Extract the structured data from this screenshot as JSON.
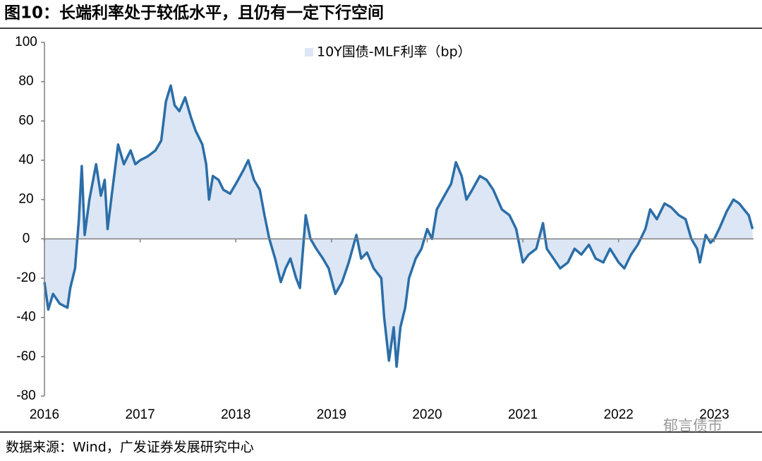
{
  "chart_data": {
    "type": "area",
    "title": "图10：长端利率处于较低水平，且仍有一定下行空间",
    "source": "数据来源：Wind，广发证券发展研究中心",
    "watermark": "郁言债市",
    "x": [
      2016.0,
      2016.04,
      2016.09,
      2016.16,
      2016.24,
      2016.27,
      2016.32,
      2016.36,
      2016.39,
      2016.42,
      2016.47,
      2016.54,
      2016.59,
      2016.63,
      2016.66,
      2016.71,
      2016.77,
      2016.83,
      2016.9,
      2016.95,
      2017.0,
      2017.08,
      2017.16,
      2017.22,
      2017.27,
      2017.32,
      2017.36,
      2017.41,
      2017.47,
      2017.53,
      2017.58,
      2017.65,
      2017.69,
      2017.72,
      2017.76,
      2017.82,
      2017.87,
      2017.94,
      2018.0,
      2018.08,
      2018.13,
      2018.19,
      2018.25,
      2018.3,
      2018.35,
      2018.41,
      2018.47,
      2018.52,
      2018.57,
      2018.63,
      2018.67,
      2018.73,
      2018.78,
      2018.84,
      2018.91,
      2018.97,
      2019.04,
      2019.11,
      2019.18,
      2019.26,
      2019.31,
      2019.37,
      2019.44,
      2019.52,
      2019.55,
      2019.6,
      2019.65,
      2019.68,
      2019.72,
      2019.77,
      2019.81,
      2019.88,
      2019.94,
      2020.0,
      2020.05,
      2020.1,
      2020.18,
      2020.25,
      2020.3,
      2020.36,
      2020.41,
      2020.47,
      2020.55,
      2020.62,
      2020.69,
      2020.78,
      2020.86,
      2020.93,
      2020.97,
      2021.0,
      2021.06,
      2021.14,
      2021.21,
      2021.25,
      2021.32,
      2021.39,
      2021.47,
      2021.54,
      2021.61,
      2021.69,
      2021.76,
      2021.84,
      2021.91,
      2022.0,
      2022.06,
      2022.13,
      2022.2,
      2022.28,
      2022.33,
      2022.4,
      2022.48,
      2022.55,
      2022.63,
      2022.7,
      2022.76,
      2022.82,
      2022.85,
      2022.91,
      2022.96,
      2023.0,
      2023.05,
      2023.13,
      2023.2,
      2023.26,
      2023.31,
      2023.36,
      2023.4
    ],
    "series": [
      {
        "name": "10Y国债-MLF利率（bp）",
        "color": "#2b6ea8",
        "fill": "#dce6f4",
        "values": [
          -22,
          -36,
          -28,
          -33,
          -35,
          -25,
          -15,
          10,
          37,
          2,
          20,
          38,
          22,
          30,
          5,
          25,
          48,
          38,
          45,
          38,
          40,
          42,
          45,
          50,
          70,
          78,
          68,
          65,
          72,
          62,
          55,
          48,
          38,
          20,
          32,
          30,
          25,
          23,
          28,
          35,
          40,
          30,
          25,
          12,
          0,
          -10,
          -22,
          -15,
          -10,
          -20,
          -25,
          12,
          0,
          -5,
          -10,
          -15,
          -28,
          -22,
          -12,
          2,
          -10,
          -7,
          -15,
          -20,
          -40,
          -62,
          -45,
          -65,
          -45,
          -35,
          -20,
          -10,
          -5,
          5,
          0,
          15,
          22,
          28,
          39,
          32,
          20,
          25,
          32,
          30,
          25,
          15,
          12,
          5,
          -5,
          -12,
          -8,
          -5,
          8,
          -5,
          -10,
          -15,
          -12,
          -5,
          -8,
          -3,
          -10,
          -12,
          -5,
          -12,
          -15,
          -8,
          -3,
          5,
          15,
          10,
          18,
          16,
          12,
          10,
          0,
          -5,
          -12,
          2,
          -2,
          0,
          5,
          14,
          20,
          18,
          15,
          12,
          5
        ]
      }
    ],
    "xlim": [
      2016,
      2023.41
    ],
    "xticks": [
      2016,
      2017,
      2018,
      2019,
      2020,
      2021,
      2022,
      2023
    ],
    "ylim": [
      -80,
      100
    ],
    "yticks": [
      -80,
      -60,
      -40,
      -20,
      0,
      20,
      40,
      60,
      80,
      100
    ],
    "legend": "top"
  }
}
